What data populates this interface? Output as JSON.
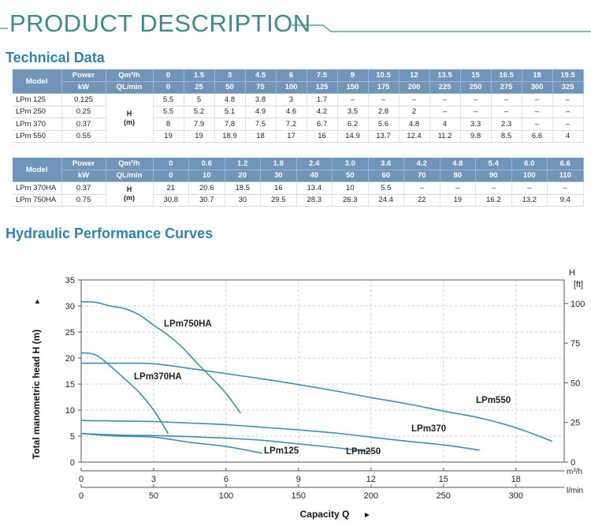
{
  "header": {
    "title": "PRODUCT DESCRIPTION"
  },
  "sections": {
    "technical_data": "Technical Data",
    "curves": "Hydraulic Performance Curves"
  },
  "table1": {
    "model_header": "Model",
    "power_header": "Power",
    "power_unit": "kW",
    "q1_label": "Qm³/h",
    "q2_label": "QL/min",
    "h_label": "H",
    "h_unit": "(m)",
    "flow_m3h": [
      "0",
      "1.5",
      "3",
      "4.5",
      "6",
      "7.5",
      "9",
      "10.5",
      "12",
      "13.5",
      "15",
      "16.5",
      "18",
      "19.5"
    ],
    "flow_lmin": [
      "0",
      "25",
      "50",
      "75",
      "100",
      "125",
      "150",
      "175",
      "200",
      "225",
      "250",
      "275",
      "300",
      "325"
    ],
    "rows": [
      {
        "model": "LPm 125",
        "power": "0.125",
        "heads": [
          "5.5",
          "5",
          "4.8",
          "3.8",
          "3",
          "1.7",
          "–",
          "–",
          "–",
          "–",
          "–",
          "–",
          "–",
          "–"
        ]
      },
      {
        "model": "LPm 250",
        "power": "0.25",
        "heads": [
          "5.5",
          "5.2",
          "5.1",
          "4.9",
          "4.6",
          "4.2",
          "3.5",
          "2.8",
          "2",
          "–",
          "–",
          "–",
          "–",
          "–"
        ]
      },
      {
        "model": "LPm 370",
        "power": "0.37",
        "heads": [
          "8",
          "7.9",
          "7.8",
          "7.5",
          "7.2",
          "6.7",
          "6.2",
          "5.6",
          "4.8",
          "4",
          "3.3",
          "2.3",
          "–",
          "–"
        ]
      },
      {
        "model": "LPm 550",
        "power": "0.55",
        "heads": [
          "19",
          "19",
          "18.9",
          "18",
          "17",
          "16",
          "14.9",
          "13.7",
          "12.4",
          "11.2",
          "9.8",
          "8.5",
          "6.6",
          "4"
        ]
      }
    ]
  },
  "table2": {
    "model_header": "Model",
    "power_header": "Power",
    "power_unit": "kW",
    "q1_label": "Qm³/h",
    "q2_label": "QL/min",
    "h_label": "H",
    "h_unit": "(m)",
    "flow_m3h": [
      "0",
      "0.6",
      "1.2",
      "1.8",
      "2.4",
      "3.0",
      "3.6",
      "4.2",
      "4.8",
      "5.4",
      "6.0",
      "6.6"
    ],
    "flow_lmin": [
      "0",
      "10",
      "20",
      "30",
      "40",
      "50",
      "60",
      "70",
      "80",
      "90",
      "100",
      "110"
    ],
    "rows": [
      {
        "model": "LPm 370HA",
        "power": "0.37",
        "heads": [
          "21",
          "20.6",
          "18.5",
          "16",
          "13.4",
          "10",
          "5.5",
          "–",
          "–",
          "–",
          "–",
          "–"
        ]
      },
      {
        "model": "LPm 750HA",
        "power": "0.75",
        "heads": [
          "30.8",
          "30.7",
          "30",
          "29.5",
          "28.3",
          "26.3",
          "24.4",
          "22",
          "19",
          "16.2",
          "13.2",
          "9.4"
        ]
      }
    ]
  },
  "chart_data": {
    "type": "line",
    "ylabel": "Total manometric head H (m)",
    "ylabel_arrow": "►",
    "xlabel": "Capacity Q",
    "xlabel_arrow": "►",
    "x_unit_top": "m³/h",
    "x_unit_bottom": "l/min",
    "y_right_label": "H",
    "y_right_unit": "[ft]",
    "xlim": [
      0,
      20
    ],
    "ylim": [
      0,
      35
    ],
    "x_ticks_m3h": [
      0,
      3,
      6,
      9,
      12,
      15,
      18
    ],
    "x_ticks_lmin": [
      0,
      50,
      100,
      150,
      200,
      250,
      300
    ],
    "y_ticks_m": [
      0,
      5,
      10,
      15,
      20,
      25,
      30,
      35
    ],
    "y_ticks_ft": [
      0,
      25,
      50,
      75,
      100
    ],
    "grid": true,
    "line_color": "#3f8fa8",
    "series": [
      {
        "name": "LPm750HA",
        "x": [
          0,
          0.6,
          1.2,
          1.8,
          2.4,
          3.0,
          3.6,
          4.2,
          4.8,
          5.4,
          6.0,
          6.6
        ],
        "y": [
          30.8,
          30.7,
          30,
          29.5,
          28.3,
          26.3,
          24.4,
          22,
          19,
          16.2,
          13.2,
          9.4
        ]
      },
      {
        "name": "LPm370HA",
        "x": [
          0,
          0.6,
          1.2,
          1.8,
          2.4,
          3.0,
          3.6
        ],
        "y": [
          21,
          20.6,
          18.5,
          16,
          13.4,
          10,
          5.5
        ]
      },
      {
        "name": "LPm550",
        "x": [
          0,
          1.5,
          3,
          4.5,
          6,
          7.5,
          9,
          10.5,
          12,
          13.5,
          15,
          16.5,
          18,
          19.5
        ],
        "y": [
          19,
          19,
          18.9,
          18,
          17,
          16,
          14.9,
          13.7,
          12.4,
          11.2,
          9.8,
          8.5,
          6.6,
          4
        ]
      },
      {
        "name": "LPm370",
        "x": [
          0,
          1.5,
          3,
          4.5,
          6,
          7.5,
          9,
          10.5,
          12,
          13.5,
          15,
          16.5
        ],
        "y": [
          8,
          7.9,
          7.8,
          7.5,
          7.2,
          6.7,
          6.2,
          5.6,
          4.8,
          4,
          3.3,
          2.3
        ]
      },
      {
        "name": "LPm250",
        "x": [
          0,
          1.5,
          3,
          4.5,
          6,
          7.5,
          9,
          10.5,
          12
        ],
        "y": [
          5.5,
          5.2,
          5.1,
          4.9,
          4.6,
          4.2,
          3.5,
          2.8,
          2
        ]
      },
      {
        "name": "LPm125",
        "x": [
          0,
          1.5,
          3,
          4.5,
          6,
          7.5
        ],
        "y": [
          5.5,
          5,
          4.8,
          3.8,
          3,
          1.7
        ]
      }
    ]
  }
}
